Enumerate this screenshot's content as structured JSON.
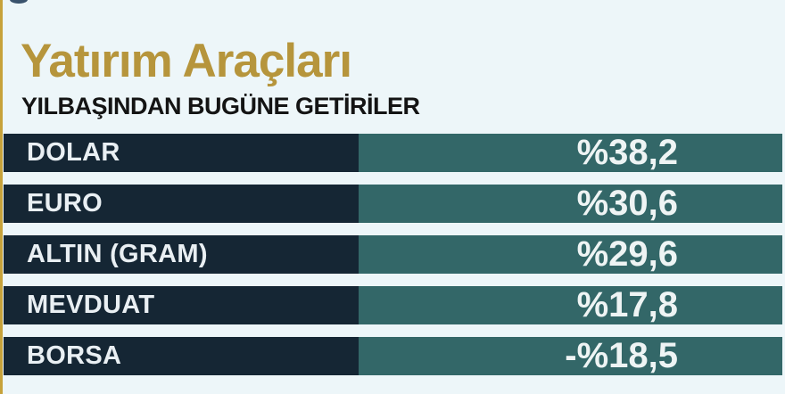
{
  "header": {
    "title": "Yatırım Araçları",
    "subtitle": "YILBAŞINDAN BUGÜNE GETİRİLER"
  },
  "chart_data": {
    "type": "table",
    "title": "Yatırım Araçları",
    "subtitle": "YILBAŞINDAN BUGÜNE GETİRİLER",
    "categories": [
      "DOLAR",
      "EURO",
      "ALTIN (GRAM)",
      "MEVDUAT",
      "BORSA"
    ],
    "values": [
      38.2,
      30.6,
      29.6,
      17.8,
      -18.5
    ],
    "value_labels": [
      "%38,2",
      "%30,6",
      "%29,6",
      "%17,8",
      "-%18,5"
    ],
    "unit": "percent",
    "layout": "five equal-width rows; label on dark navy cell (left), value right-aligned on teal cell (right); no axes or gridlines"
  },
  "colors": {
    "background": "#edf6f9",
    "navy_bar": "#152634",
    "teal_bar": "#336768",
    "title_gold": "#b6953c",
    "accent_line_gold": "#c7a23b",
    "bar_text_light": "#eef4f4",
    "subtitle_dark": "#141414",
    "logo_arc_blue": "#3a536d"
  }
}
